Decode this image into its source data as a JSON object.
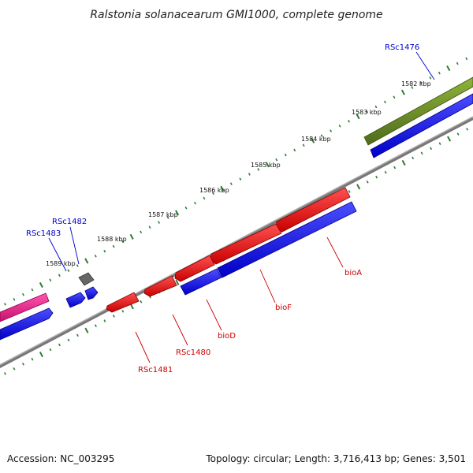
{
  "title": "Ralstonia solanacearum GMI1000, complete genome",
  "footer": {
    "accession": "Accession: NC_003295",
    "summary": "Topology: circular; Length: 3,716,413 bp; Genes: 3,501"
  },
  "ticks": [
    "1582 kbp",
    "1583 kbp",
    "1584 kbp",
    "1585 kbp",
    "1586 kbp",
    "1587 kbp",
    "1588 kbp",
    "1589 kbp"
  ],
  "genes_forward_labels": [
    "RSc1476",
    "RSc1482",
    "RSc1483"
  ],
  "genes_reverse_labels": [
    "bioA",
    "bioF",
    "bioD",
    "RSc1480",
    "RSc1481"
  ],
  "colors": {
    "backbone": "#888888",
    "cds_blue": "#0000ff",
    "cds_red": "#ff0000",
    "cds_olive": "#6b8e23",
    "cds_pink": "#ff1493",
    "cds_gray": "#555555",
    "tick_green": "#2e7d32",
    "label_blue": "#0000cc",
    "label_red": "#cc0000"
  }
}
